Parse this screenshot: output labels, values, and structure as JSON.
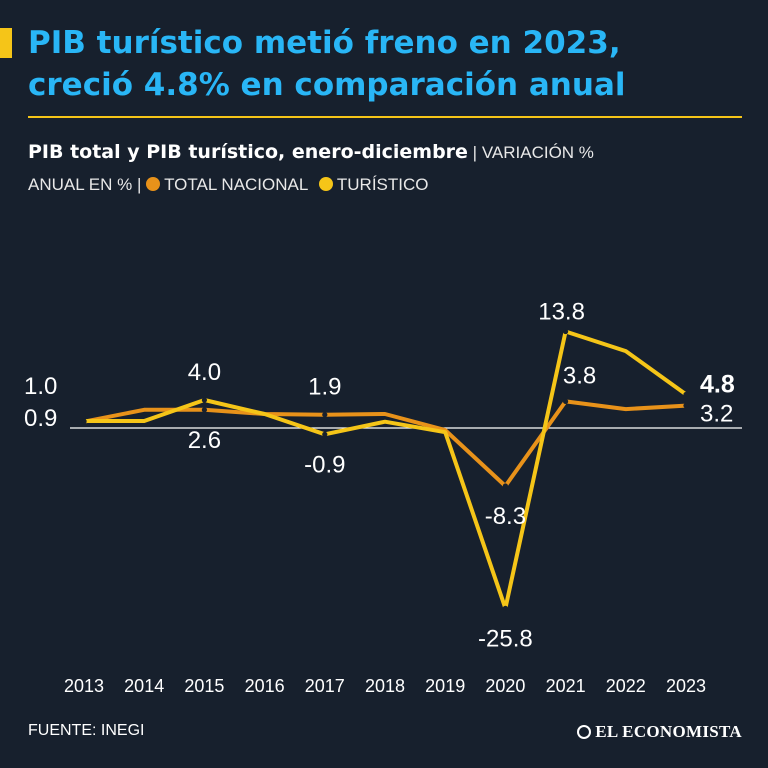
{
  "headline": {
    "line1": "PIB turístico metió freno en 2023,",
    "line2": "creció 4.8% en comparación anual"
  },
  "subtitle": {
    "title": "PIB total y PIB turístico, enero-diciembre",
    "sep1": " | ",
    "unit_part1": "VARIACIÓN %",
    "unit_part2": "ANUAL EN %",
    "sep2": " | ",
    "legend_total": "TOTAL NACIONAL",
    "legend_tourism": "TURÍSTICO"
  },
  "colors": {
    "background": "#17202d",
    "headline": "#29b6f6",
    "accent": "#f5c518",
    "total": "#e8921a",
    "tourism": "#f5c518",
    "zero_line": "#ffffff"
  },
  "chart_data": {
    "type": "line",
    "title": "PIB total y PIB turístico, enero-diciembre",
    "ylabel": "Variación % anual",
    "xlabel": "",
    "categories": [
      "2013",
      "2014",
      "2015",
      "2016",
      "2017",
      "2018",
      "2019",
      "2020",
      "2021",
      "2022",
      "2023"
    ],
    "series": [
      {
        "name": "TOTAL NACIONAL",
        "color": "#e8921a",
        "values": [
          0.9,
          2.6,
          2.6,
          2.0,
          1.9,
          2.0,
          -0.3,
          -8.3,
          3.8,
          2.7,
          3.2
        ]
      },
      {
        "name": "TURÍSTICO",
        "color": "#f5c518",
        "values": [
          1.0,
          1.0,
          4.0,
          2.0,
          -0.9,
          0.9,
          -0.6,
          -25.8,
          13.8,
          11.0,
          4.8
        ]
      }
    ],
    "labels": [
      {
        "text": "1.0",
        "year": "2013",
        "series": "TURÍSTICO",
        "placement": "above"
      },
      {
        "text": "0.9",
        "year": "2013",
        "series": "TOTAL NACIONAL",
        "placement": "below"
      },
      {
        "text": "4.0",
        "year": "2015",
        "series": "TURÍSTICO",
        "placement": "above"
      },
      {
        "text": "2.6",
        "year": "2015",
        "series": "TOTAL NACIONAL",
        "placement": "below"
      },
      {
        "text": "1.9",
        "year": "2017",
        "series": "TOTAL NACIONAL",
        "placement": "above"
      },
      {
        "text": "-0.9",
        "year": "2017",
        "series": "TURÍSTICO",
        "placement": "below"
      },
      {
        "text": "-8.3",
        "year": "2020",
        "series": "TOTAL NACIONAL",
        "placement": "below"
      },
      {
        "text": "-25.8",
        "year": "2020",
        "series": "TURÍSTICO",
        "placement": "below"
      },
      {
        "text": "13.8",
        "year": "2021",
        "series": "TURÍSTICO",
        "placement": "above"
      },
      {
        "text": "3.8",
        "year": "2021",
        "series": "TOTAL NACIONAL",
        "placement": "above-right"
      },
      {
        "text": "4.8",
        "year": "2023",
        "series": "TURÍSTICO",
        "placement": "right",
        "bold": true
      },
      {
        "text": "3.2",
        "year": "2023",
        "series": "TOTAL NACIONAL",
        "placement": "right"
      }
    ],
    "ylim": [
      -27,
      19
    ],
    "zero_line": true,
    "grid": false
  },
  "footer": {
    "source": "FUENTE: INEGI",
    "brand": "EL ECONOMISTA"
  }
}
